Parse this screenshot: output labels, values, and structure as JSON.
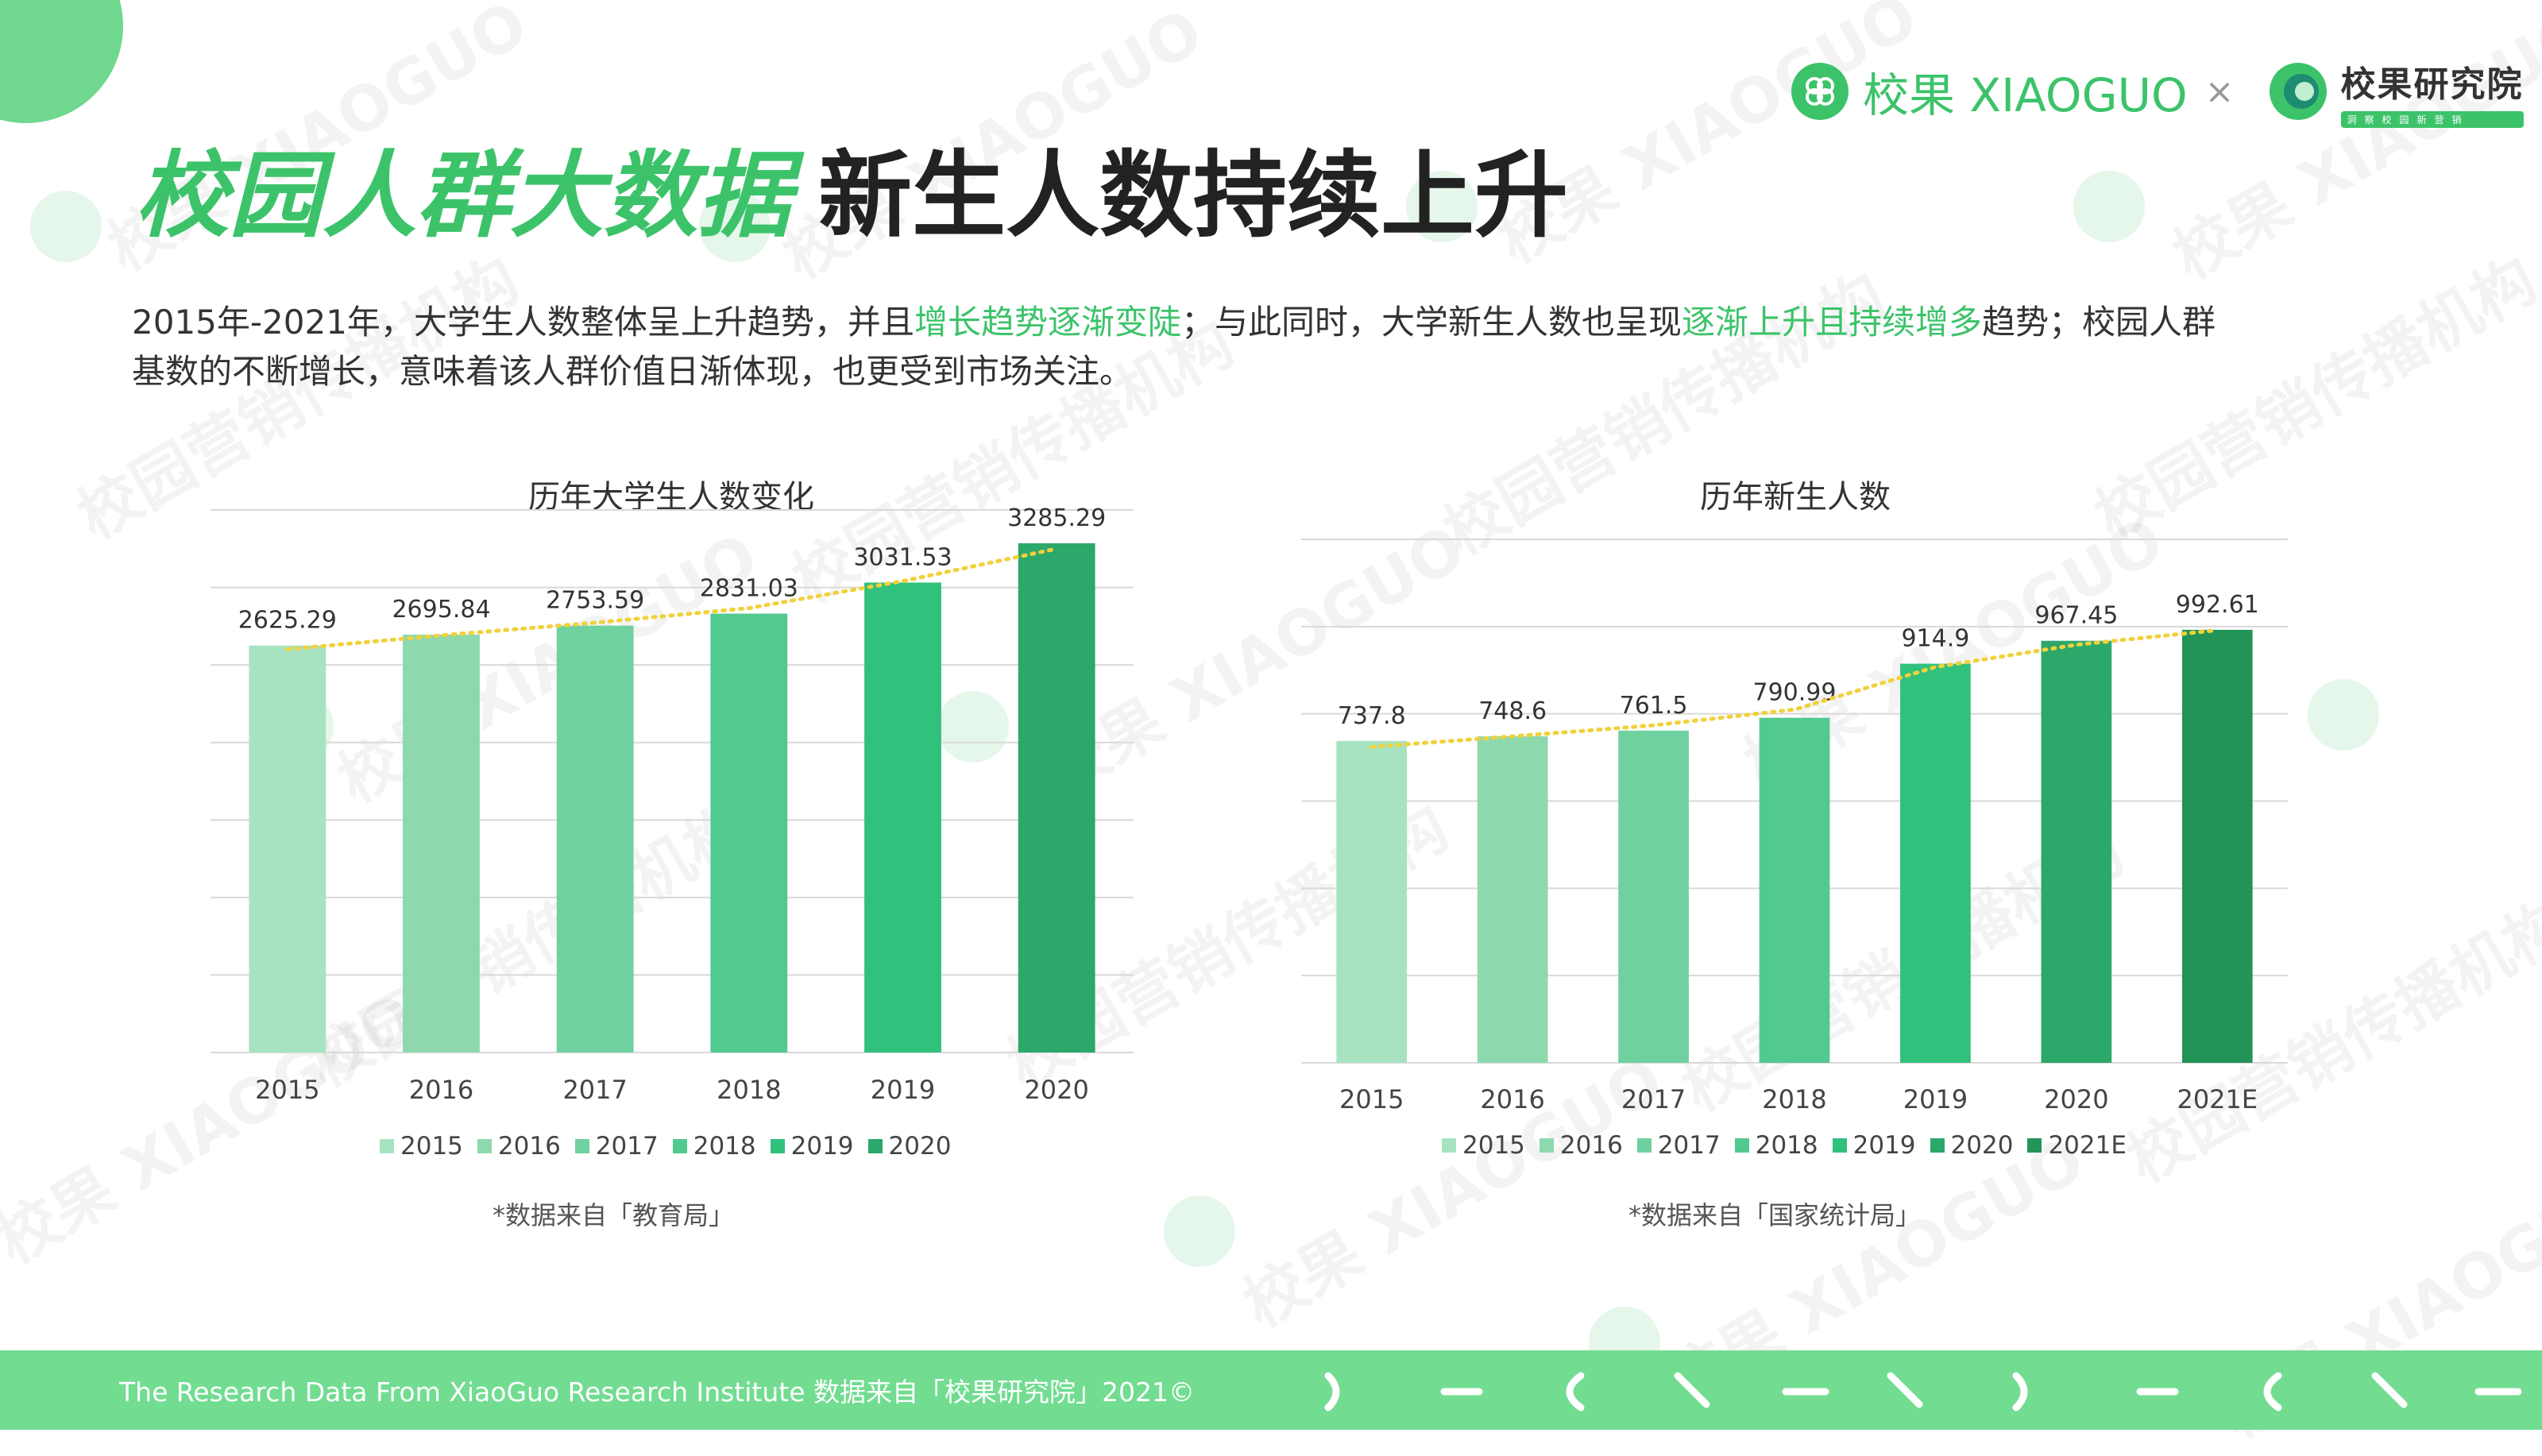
{
  "header": {
    "title_highlight": "校园人群大数据",
    "title_main": "新生人数持续上升",
    "brand_name": "校果 XIAOGUO",
    "brand_separator": "×",
    "brand2_name": "校果研究院",
    "brand2_tag": "洞察校园新营销"
  },
  "description": {
    "part1": "2015年-2021年，大学生人数整体呈上升趋势，并且",
    "highlight1": "增长趋势逐渐变陡",
    "part2": "；与此同时，大学新生人数也呈现",
    "highlight2": "逐渐上升且持续增多",
    "part3": "趋势；校园人群基数的不断增长，意味着该人群价值日渐体现，也更受到市场关注。"
  },
  "watermark": {
    "text1": "校园营销传播机构",
    "text2": "校果 XIAOGUO"
  },
  "chart_data": [
    {
      "type": "bar",
      "title": "历年大学生人数变化",
      "categories": [
        "2015",
        "2016",
        "2017",
        "2018",
        "2019",
        "2020"
      ],
      "values": [
        2625.29,
        2695.84,
        2753.59,
        2831.03,
        3031.53,
        3285.29
      ],
      "value_labels": [
        "2625.29",
        "2695.84",
        "2753.59",
        "2831.03",
        "3031.53",
        "3285.29"
      ],
      "colors": [
        "#a8e3c1",
        "#8dd9ad",
        "#6fd19f",
        "#52c98f",
        "#30c17d",
        "#2ba86a"
      ],
      "ylim": [
        0,
        3500
      ],
      "trendline": "dotted",
      "trend_color": "#f2d13a",
      "legend": [
        "2015",
        "2016",
        "2017",
        "2018",
        "2019",
        "2020"
      ],
      "source": "*数据来自「教育局」"
    },
    {
      "type": "bar",
      "title": "历年新生人数",
      "categories": [
        "2015",
        "2016",
        "2017",
        "2018",
        "2019",
        "2020",
        "2021E"
      ],
      "values": [
        737.8,
        748.6,
        761.5,
        790.99,
        914.9,
        967.45,
        992.61
      ],
      "value_labels": [
        "737.8",
        "748.6",
        "761.5",
        "790.99",
        "914.9",
        "967.45",
        "992.61"
      ],
      "colors": [
        "#a8e3c1",
        "#8dd9ad",
        "#6fd19f",
        "#52c98f",
        "#30c17d",
        "#2ba86a",
        "#229458"
      ],
      "ylim": [
        0,
        1200
      ],
      "trendline": "dotted",
      "trend_color": "#f2d13a",
      "legend": [
        "2015",
        "2016",
        "2017",
        "2018",
        "2019",
        "2020",
        "2021E"
      ],
      "source": "*数据来自「国家统计局」"
    }
  ],
  "footer": {
    "text": "The Research Data  From XiaoGuo Research Institute 数据来自「校果研究院」2021©"
  }
}
